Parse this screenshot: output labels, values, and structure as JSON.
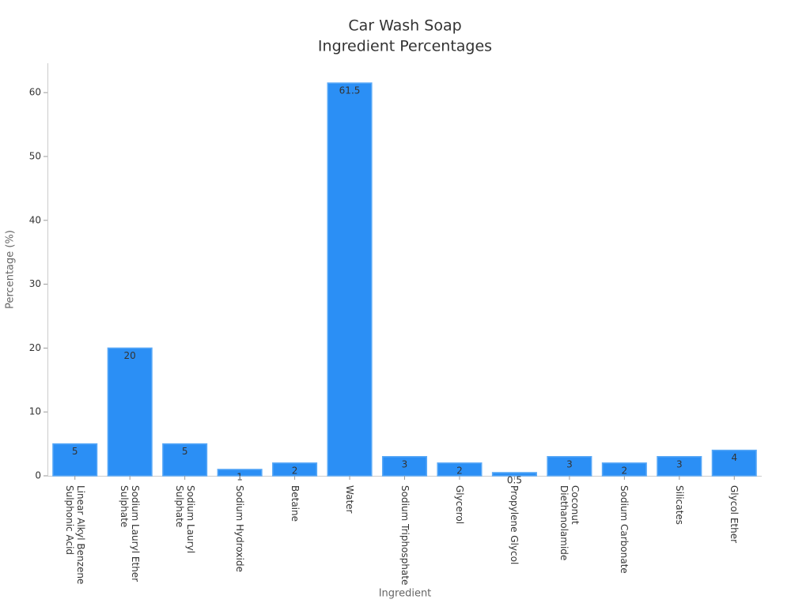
{
  "chart_data": {
    "type": "bar",
    "title": [
      "Car Wash Soap",
      "Ingredient Percentages"
    ],
    "x_label": "Ingredient",
    "y_label": "Percentage (%)",
    "categories": [
      "Linear Alkyl Benzene Sulphonic Acid",
      "Sodium Lauryl Ether Sulphate",
      "Sodium Lauryl Sulphate",
      "Sodium Hydroxide",
      "Betaine",
      "Water",
      "Sodium Triphosphate",
      "Glycerol",
      "Propylene Glycol",
      "Coconut Diethanolamide",
      "Sodium Carbonate",
      "Silicates",
      "Glycol Ether"
    ],
    "values": [
      5,
      20,
      5,
      1,
      2,
      61.5,
      3,
      2,
      0.5,
      3,
      2,
      3,
      4
    ],
    "color": "#2b8ff5",
    "ylim": [
      0,
      64.6
    ],
    "yticks": [
      0,
      10,
      20,
      30,
      40,
      50,
      60
    ]
  }
}
